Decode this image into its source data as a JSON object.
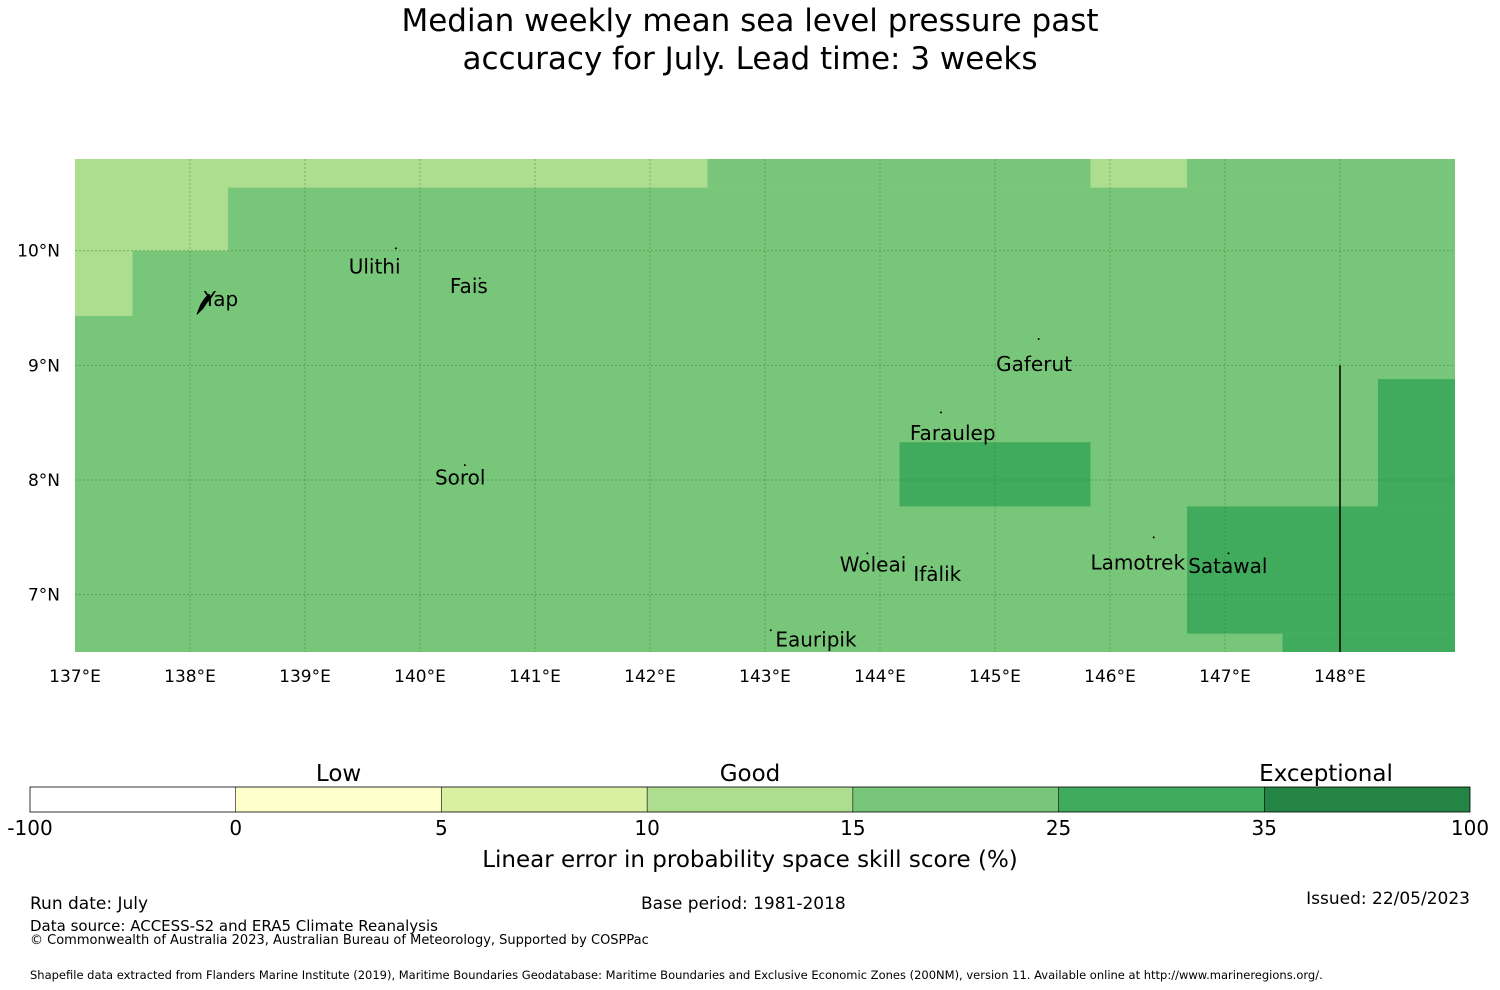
{
  "title_lines": [
    "Median weekly mean sea level pressure past",
    "accuracy for July. Lead time: 3 weeks"
  ],
  "map": {
    "lon_range": [
      137.0,
      149.0
    ],
    "lat_range": [
      6.5,
      10.8
    ],
    "lon_ticks": [
      {
        "value": 137,
        "label": "137°E"
      },
      {
        "value": 138,
        "label": "138°E"
      },
      {
        "value": 139,
        "label": "139°E"
      },
      {
        "value": 140,
        "label": "140°E"
      },
      {
        "value": 141,
        "label": "141°E"
      },
      {
        "value": 142,
        "label": "142°E"
      },
      {
        "value": 143,
        "label": "143°E"
      },
      {
        "value": 144,
        "label": "144°E"
      },
      {
        "value": 145,
        "label": "145°E"
      },
      {
        "value": 146,
        "label": "146°E"
      },
      {
        "value": 147,
        "label": "147°E"
      },
      {
        "value": 148,
        "label": "148°E"
      }
    ],
    "lat_ticks": [
      {
        "value": 10,
        "label": "10°N"
      },
      {
        "value": 9,
        "label": "9°N"
      },
      {
        "value": 8,
        "label": "8°N"
      },
      {
        "value": 7,
        "label": "7°N"
      }
    ],
    "base_color": "#78c679",
    "regions": [
      {
        "lon": [
          137.0,
          148.0
        ],
        "lat": [
          10.0,
          10.8
        ],
        "color": "#addd8e"
      },
      {
        "lon": [
          137.0,
          137.5
        ],
        "lat": [
          9.43,
          10.0
        ],
        "color": "#addd8e"
      },
      {
        "lon": [
          138.33,
          148.0
        ],
        "lat": [
          10.0,
          10.55
        ],
        "color": "#78c679"
      },
      {
        "lon": [
          142.5,
          149.0
        ],
        "lat": [
          10.55,
          10.8
        ],
        "color": "#78c679"
      },
      {
        "lon": [
          145.83,
          146.67
        ],
        "lat": [
          10.55,
          10.8
        ],
        "color": "#addd8e"
      },
      {
        "lon": [
          144.17,
          145.83
        ],
        "lat": [
          7.77,
          8.33
        ],
        "color": "#41ab5d"
      },
      {
        "lon": [
          148.33,
          149.0
        ],
        "lat": [
          7.77,
          8.88
        ],
        "color": "#41ab5d"
      },
      {
        "lon": [
          146.67,
          149.0
        ],
        "lat": [
          6.66,
          7.77
        ],
        "color": "#41ab5d"
      },
      {
        "lon": [
          147.5,
          149.0
        ],
        "lat": [
          6.5,
          6.66
        ],
        "color": "#41ab5d"
      }
    ],
    "boundary_line": {
      "lon": 148.0,
      "lat": [
        6.5,
        9.0
      ]
    },
    "places": [
      {
        "name": "Yap",
        "lon": 138.12,
        "lat": 9.52,
        "islet_lon": 138.13,
        "islet_lat": 9.55
      },
      {
        "name": "Ulithi",
        "lon": 139.38,
        "lat": 9.8,
        "islet_lon": 139.79,
        "islet_lat": 10.02
      },
      {
        "name": "Fais",
        "lon": 140.26,
        "lat": 9.63,
        "islet_lon": 140.52,
        "islet_lat": 9.76
      },
      {
        "name": "Gaferut",
        "lon": 145.01,
        "lat": 8.95,
        "islet_lon": 145.38,
        "islet_lat": 9.23
      },
      {
        "name": "Faraulep",
        "lon": 144.26,
        "lat": 8.35,
        "islet_lon": 144.53,
        "islet_lat": 8.59
      },
      {
        "name": "Sorol",
        "lon": 140.13,
        "lat": 7.96,
        "islet_lon": 140.39,
        "islet_lat": 8.13
      },
      {
        "name": "Woleai",
        "lon": 143.65,
        "lat": 7.2,
        "islet_lon": 143.89,
        "islet_lat": 7.36
      },
      {
        "name": "Ifalik",
        "lon": 144.29,
        "lat": 7.12,
        "islet_lon": 144.45,
        "islet_lat": 7.24
      },
      {
        "name": "Lamotrek",
        "lon": 145.83,
        "lat": 7.22,
        "islet_lon": 146.38,
        "islet_lat": 7.5
      },
      {
        "name": "Satawal",
        "lon": 146.68,
        "lat": 7.19,
        "islet_lon": 147.03,
        "islet_lat": 7.36
      },
      {
        "name": "Eauripik",
        "lon": 143.09,
        "lat": 6.55,
        "islet_lon": 143.05,
        "islet_lat": 6.69
      }
    ]
  },
  "colorbar": {
    "ticks": [
      "-100",
      "0",
      "5",
      "10",
      "15",
      "25",
      "35",
      "100"
    ],
    "colors": [
      "#ffffff",
      "#ffffcc",
      "#d9f0a3",
      "#addd8e",
      "#78c679",
      "#41ab5d",
      "#238443"
    ],
    "categories": [
      {
        "label": "Low",
        "center_index": 1.5
      },
      {
        "label": "Good",
        "center_index": 3.5
      },
      {
        "label": "Exceptional",
        "center_index": 6.3
      }
    ],
    "label": "Linear error in probability space skill score (%)"
  },
  "footer": {
    "run_date": "Run date: July",
    "base_period": "Base period: 1981-2018",
    "issued": "Issued: 22/05/2023",
    "data_source": "Data source: ACCESS-S2 and ERA5 Climate Reanalysis",
    "copyright": "© Commonwealth of Australia 2023, Australian Bureau of Meteorology, Supported by COSPPac",
    "shapefile": "Shapefile data extracted from Flanders Marine Institute (2019), Maritime Boundaries Geodatabase: Maritime Boundaries and Exclusive Economic Zones (200NM), version 11. Available online at http://www.marineregions.org/."
  }
}
